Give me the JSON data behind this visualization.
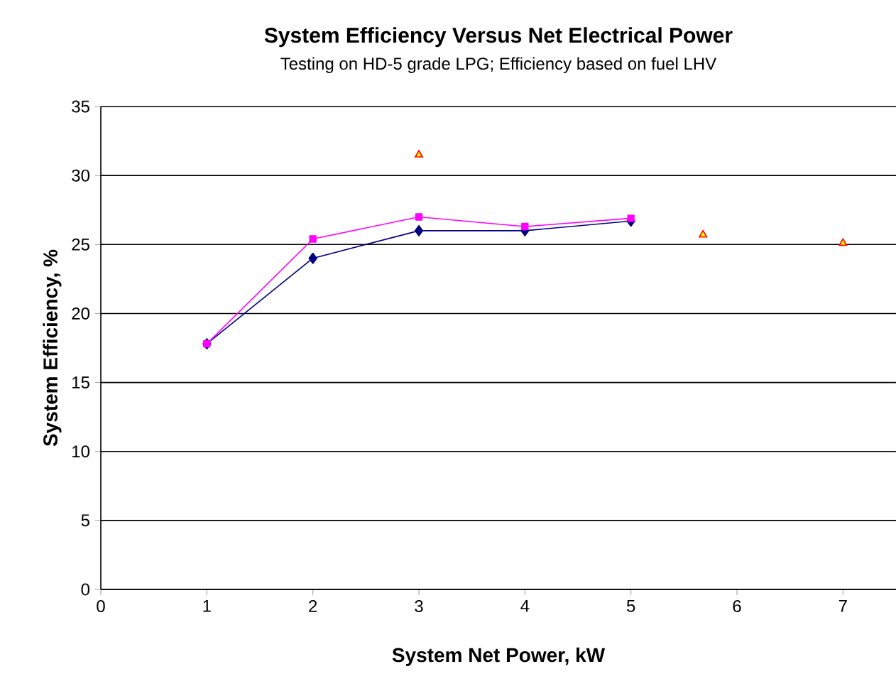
{
  "chart_data": {
    "type": "line",
    "title": "System Efficiency Versus Net Electrical Power",
    "subtitle": "Testing on HD-5 grade LPG; Efficiency based on fuel LHV",
    "xlabel": "System Net Power, kW",
    "ylabel": "System Efficiency, %",
    "xlim": [
      0,
      7.5
    ],
    "xticks": [
      0,
      1,
      2,
      3,
      4,
      5,
      6,
      7
    ],
    "ylim": [
      0,
      35
    ],
    "yticks": [
      0,
      5,
      10,
      15,
      20,
      25,
      30,
      35
    ],
    "grid": "y",
    "series": [
      {
        "color": "#000080",
        "marker": "diamond",
        "x": [
          1,
          2,
          3,
          4,
          5
        ],
        "values": [
          17.8,
          24.0,
          26.0,
          26.0,
          26.7
        ]
      },
      {
        "color": "#ff00ff",
        "marker": "square",
        "x": [
          1,
          2,
          3,
          4,
          5
        ],
        "values": [
          17.8,
          25.4,
          27.0,
          26.3,
          26.9
        ]
      },
      {
        "type": "scatter",
        "color": "#ff0000",
        "marker": "triangle",
        "x": [
          3,
          5.68,
          7
        ],
        "values": [
          31.5,
          25.7,
          25.1
        ]
      }
    ]
  }
}
